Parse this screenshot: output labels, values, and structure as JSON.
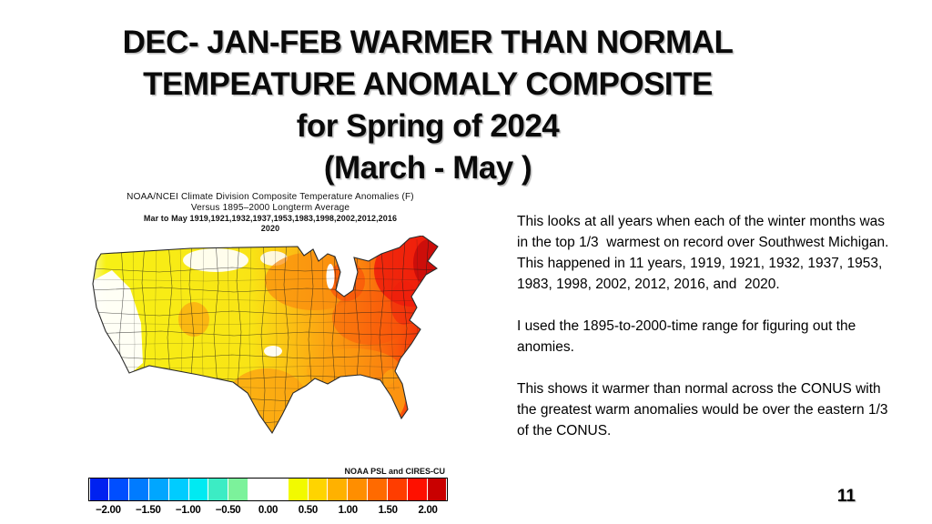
{
  "title": {
    "lines": [
      "DEC- JAN-FEB WARMER THAN NORMAL",
      "TEMPEATURE ANOMALY COMPOSITE",
      "for Spring of 2024",
      "(March - May )"
    ]
  },
  "figure": {
    "header_line1": "NOAA/NCEI Climate Division Composite Temperature Anomalies (F)",
    "header_line2": "Versus 1895–2000 Longterm Average",
    "header_line3": "Mar to May   1919,1921,1932,1937,1953,1983,1998,2002,2012,2016",
    "header_line4": "2020",
    "credit": "NOAA PSL and CIRES-CU",
    "colorbar": {
      "colors": [
        "#0021f0",
        "#004eff",
        "#007bff",
        "#00a6ff",
        "#00ccff",
        "#00eaf2",
        "#3cecc4",
        "#7cf29b",
        "#ffffff",
        "#ffffff",
        "#f2fa00",
        "#ffd400",
        "#ffb100",
        "#ff8e00",
        "#ff6a00",
        "#ff3d00",
        "#fe1000",
        "#c90000"
      ],
      "labels": [
        "−2.00",
        "−1.50",
        "−1.00",
        "−0.50",
        "0.00",
        "0.50",
        "1.00",
        "1.50",
        "2.00"
      ],
      "value_min": -2.25,
      "value_max": 2.25,
      "cell_step": 0.25,
      "units": "F"
    },
    "map_colors": {
      "white": "#ffffff",
      "yellow": "#f7f115",
      "gold": "#fdd017",
      "orange": "#fca311",
      "dark_orange": "#fb8b0e",
      "orange_red": "#f9530a",
      "red": "#ee1c0c",
      "dark_red": "#c40a0a"
    }
  },
  "body": {
    "paragraphs": [
      "This looks at all years when each of the winter months was in the top 1/3  warmest on record over Southwest Michigan.  This happened in 11 years, 1919, 1921, 1932, 1937, 1953, 1983, 1998, 2002, 2012, 2016, and  2020.",
      "I used the 1895-to-2000-time range for figuring out the anomies.",
      "This shows it warmer than normal across the CONUS with the greatest warm anomalies would be over the eastern 1/3 of the CONUS."
    ]
  },
  "page_number": "11"
}
